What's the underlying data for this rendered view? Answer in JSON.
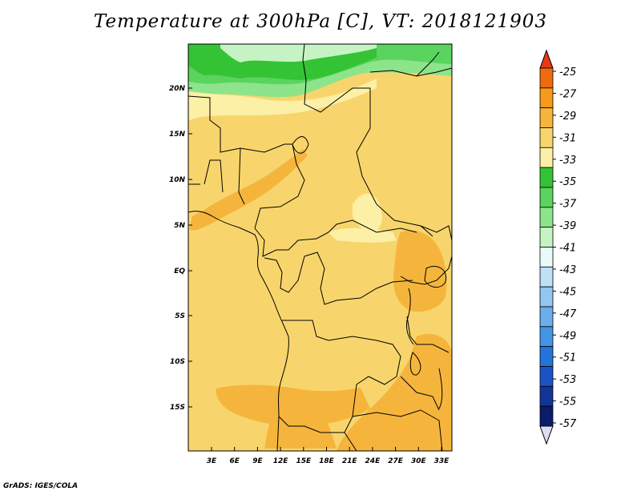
{
  "title": "Temperature at 300hPa [C], VT: 2018121903",
  "credit": "GrADS: IGES/COLA",
  "lat_labels": [
    "20N",
    "15N",
    "10N",
    "5N",
    "EQ",
    "5S",
    "10S",
    "15S"
  ],
  "lon_labels": [
    "3E",
    "6E",
    "9E",
    "12E",
    "15E",
    "18E",
    "21E",
    "24E",
    "27E",
    "30E",
    "33E"
  ],
  "colorbar": {
    "labels": [
      "-25",
      "-27",
      "-29",
      "-31",
      "-33",
      "-35",
      "-37",
      "-39",
      "-41",
      "-43",
      "-45",
      "-47",
      "-49",
      "-51",
      "-53",
      "-55",
      "-57"
    ],
    "colors": [
      "#e83a12",
      "#f06a10",
      "#f59a1a",
      "#f5b53c",
      "#f8d56c",
      "#fcf0a6",
      "#33c334",
      "#5ad45e",
      "#8de48a",
      "#c6f3c3",
      "#e8fbfb",
      "#bfe0f7",
      "#94c6f0",
      "#6aaeed",
      "#4494e6",
      "#2574da",
      "#1a54c4",
      "#123597",
      "#0c1b6b",
      "#dcdcf5"
    ],
    "top_color": "#e83a12",
    "bottom_color": "#dcdcf5"
  },
  "field_colors": {
    "base": "#f8d56c",
    "warm": "#f5b53c",
    "cool": "#fcf0a6",
    "green_dark": "#33c334",
    "green_mid": "#5ad45e",
    "green_light": "#8de48a",
    "green_pale": "#c6f3c3"
  }
}
